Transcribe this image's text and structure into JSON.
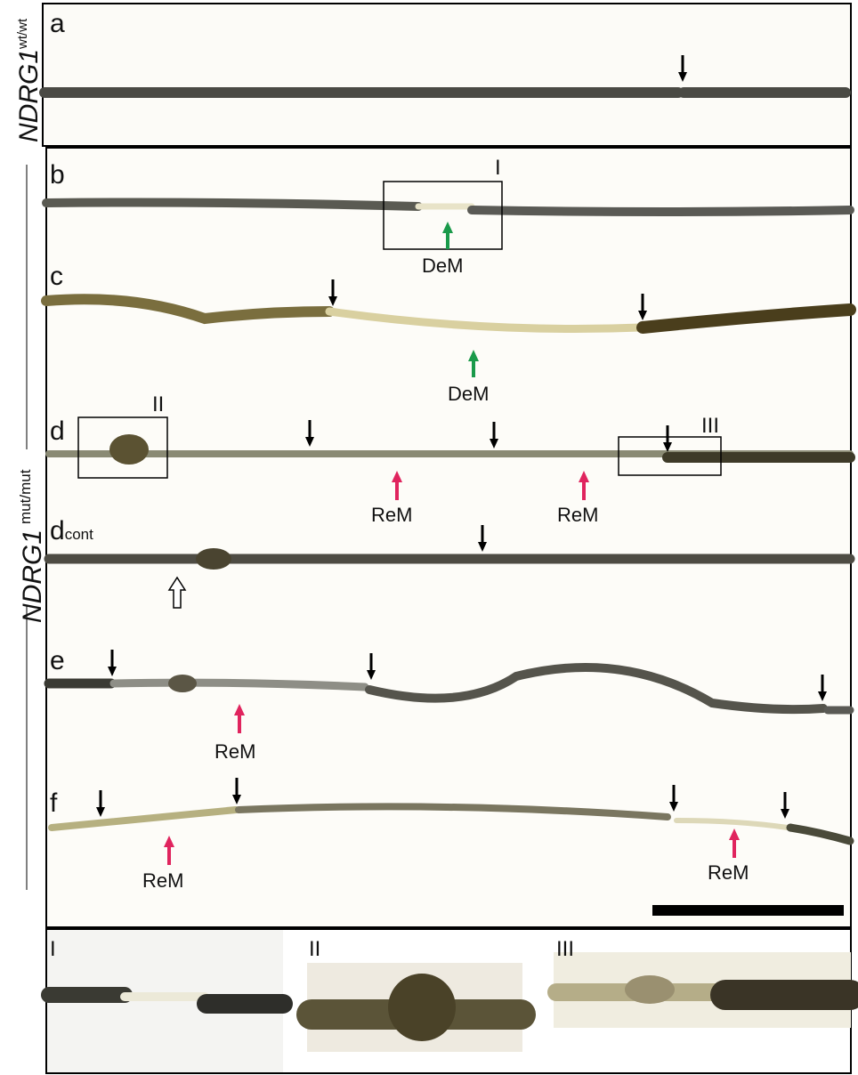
{
  "genotypes": [
    {
      "gene": "NDRG1",
      "allele": "wt/wt"
    },
    {
      "gene": "NDRG1",
      "allele": "mut/mut"
    }
  ],
  "panels": [
    {
      "label": "a"
    },
    {
      "label": "b",
      "box": "I",
      "annotations": [
        "DeM"
      ]
    },
    {
      "label": "c",
      "annotations": [
        "DeM"
      ]
    },
    {
      "label": "d",
      "boxes": [
        "II",
        "III"
      ],
      "annotations": [
        "ReM",
        "ReM"
      ]
    },
    {
      "label": "d",
      "subscript": "cont"
    },
    {
      "label": "e",
      "annotations": [
        "ReM"
      ]
    },
    {
      "label": "f",
      "annotations": [
        "ReM",
        "ReM"
      ]
    }
  ],
  "insets": [
    "I",
    "II",
    "III"
  ]
}
